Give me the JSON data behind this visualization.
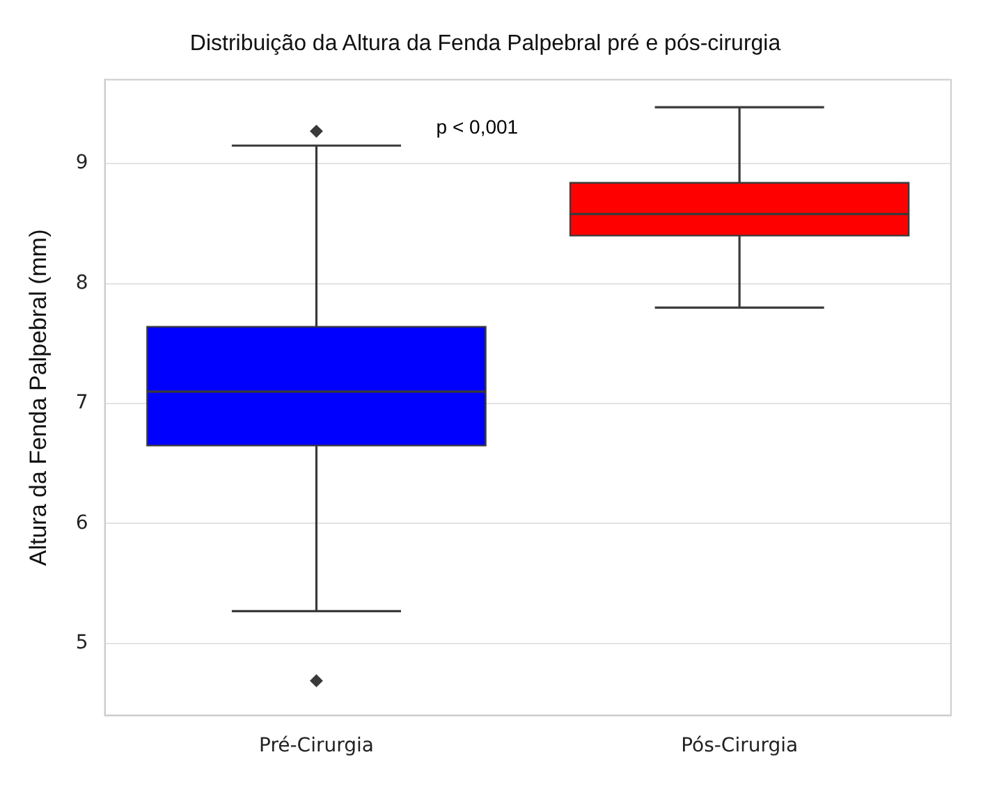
{
  "chart_data": {
    "type": "box",
    "title": "Distribuição da Altura da Fenda Palpebral pré e pós-cirurgia",
    "ylabel": "Altura da Fenda Palpebral (mm)",
    "categories": [
      "Pré-Cirurgia",
      "Pós-Cirurgia"
    ],
    "colors": [
      "#0000ff",
      "#ff0000"
    ],
    "boxes": [
      {
        "low": 5.27,
        "q1": 6.65,
        "median": 7.1,
        "q3": 7.64,
        "high": 9.15,
        "outliers": [
          9.27,
          4.69
        ]
      },
      {
        "low": 7.8,
        "q1": 8.4,
        "median": 8.58,
        "q3": 8.84,
        "high": 9.47
      }
    ],
    "ylim": [
      4.4,
      9.7
    ],
    "yticks": [
      5,
      6,
      7,
      8,
      9
    ],
    "grid": "y",
    "marker": "diamond",
    "annotations": [
      "p < 0,001"
    ]
  }
}
